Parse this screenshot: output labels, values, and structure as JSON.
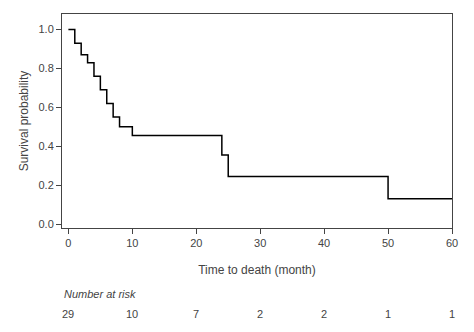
{
  "chart_data": {
    "type": "step",
    "x": [
      0,
      1,
      2,
      3,
      4,
      5,
      6,
      7,
      8,
      10,
      20,
      24,
      25,
      48,
      50,
      60
    ],
    "values": [
      1.0,
      0.93,
      0.87,
      0.83,
      0.76,
      0.69,
      0.62,
      0.55,
      0.5,
      0.455,
      0.455,
      0.355,
      0.245,
      0.245,
      0.13,
      0.13
    ],
    "color": "#000000",
    "xlabel": "Time to death (month)",
    "ylabel": "Survival probability",
    "xlim": [
      -1,
      60
    ],
    "ylim": [
      -0.02,
      1.08
    ],
    "xticks": [
      0,
      10,
      20,
      30,
      40,
      50,
      60
    ],
    "yticks": [
      {
        "value": 0.0,
        "label": "0.0"
      },
      0.2,
      0.4,
      0.6,
      0.8,
      {
        "value": 1.0,
        "label": "1.0"
      }
    ],
    "grid": false,
    "number_at_risk": {
      "label": "Number at risk",
      "x": [
        0,
        10,
        20,
        30,
        40,
        50,
        60
      ],
      "values": [
        29,
        10,
        7,
        2,
        2,
        1,
        1
      ]
    }
  }
}
